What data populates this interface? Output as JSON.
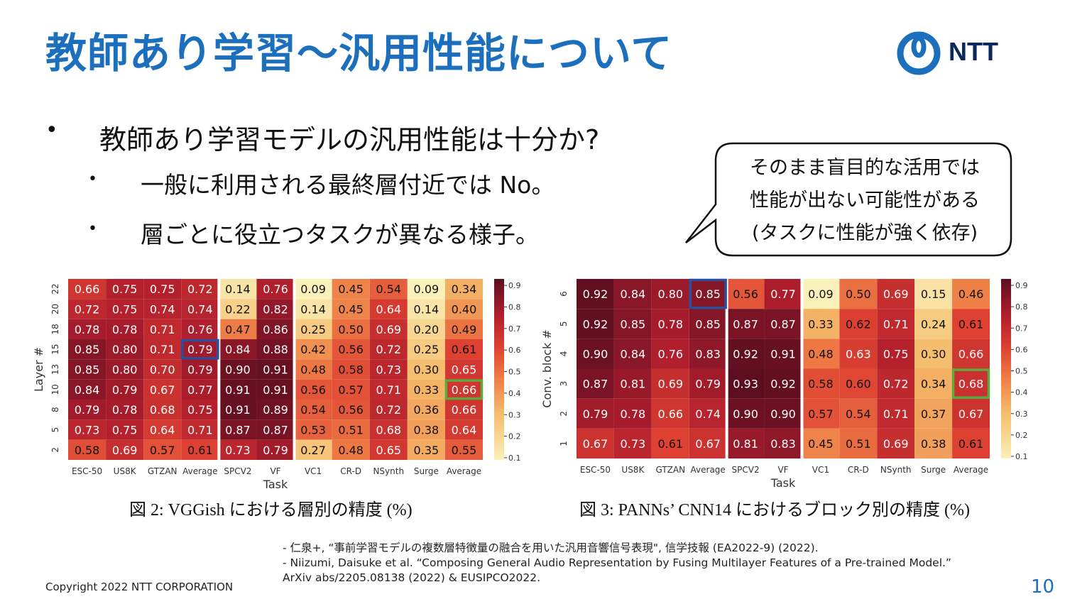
{
  "slide": {
    "title": "教師あり学習～汎用性能について",
    "logo_text": "NTT",
    "bullet1": "教師あり学習モデルの汎用性能は十分か?",
    "sub1": "一般に利用される最終層付近では No。",
    "sub2": "層ごとに役立つタスクが異なる様子。",
    "bullet_glyph": "•",
    "callout": [
      "そのまま盲目的な活用では",
      "性能が出ない可能性がある",
      "(タスクに性能が強く依存)"
    ],
    "references": [
      "- 仁泉+, “事前学習モデルの複数層特徴量の融合を用いた汎用音響信号表現\", 信学技報 (EA2022-9) (2022).",
      "- Niizumi, Daisuke et al. “Composing General Audio Representation by Fusing Multilayer Features of a Pre-trained Model.”",
      "ArXiv abs/2205.08138 (2022) & EUSIPCO2022."
    ],
    "copyright": "Copyright 2022 NTT CORPORATION",
    "page_number": "10",
    "colors": {
      "title": "#1b6fbd",
      "highlight_blue": "#2b4f9e",
      "highlight_green": "#5aaa3c"
    }
  },
  "chart_data": [
    {
      "type": "heatmap",
      "caption": "図 2: VGGish における層別の精度 (%)",
      "xlabel": "Task",
      "ylabel": "Layer #",
      "x": [
        "ESC-50",
        "US8K",
        "GTZAN",
        "Average",
        "SPCV2",
        "VF",
        "VC1",
        "CR-D",
        "NSynth",
        "Surge",
        "Average"
      ],
      "y": [
        "22",
        "20",
        "18",
        "15",
        "13",
        "10",
        "8",
        "5",
        "2"
      ],
      "values": [
        [
          0.66,
          0.75,
          0.75,
          0.72,
          0.14,
          0.76,
          0.09,
          0.45,
          0.54,
          0.09,
          0.34
        ],
        [
          0.72,
          0.75,
          0.74,
          0.74,
          0.22,
          0.82,
          0.14,
          0.45,
          0.64,
          0.14,
          0.4
        ],
        [
          0.78,
          0.78,
          0.71,
          0.76,
          0.47,
          0.86,
          0.25,
          0.5,
          0.69,
          0.2,
          0.49
        ],
        [
          0.85,
          0.8,
          0.71,
          0.79,
          0.84,
          0.88,
          0.42,
          0.56,
          0.72,
          0.25,
          0.61
        ],
        [
          0.85,
          0.8,
          0.7,
          0.79,
          0.9,
          0.91,
          0.48,
          0.58,
          0.73,
          0.3,
          0.65
        ],
        [
          0.84,
          0.79,
          0.67,
          0.77,
          0.91,
          0.91,
          0.56,
          0.57,
          0.71,
          0.33,
          0.66
        ],
        [
          0.79,
          0.78,
          0.68,
          0.75,
          0.91,
          0.89,
          0.54,
          0.56,
          0.72,
          0.36,
          0.66
        ],
        [
          0.73,
          0.75,
          0.64,
          0.71,
          0.87,
          0.87,
          0.53,
          0.51,
          0.68,
          0.38,
          0.64
        ],
        [
          0.58,
          0.69,
          0.57,
          0.61,
          0.73,
          0.79,
          0.27,
          0.48,
          0.65,
          0.35,
          0.55
        ]
      ],
      "colorbar_ticks": [
        "0.9",
        "0.8",
        "0.7",
        "0.6",
        "0.5",
        "0.4",
        "0.3",
        "0.2",
        "0.1"
      ],
      "colorbar_range": [
        0.09,
        0.93
      ],
      "highlights": [
        {
          "row": 3,
          "col": 3,
          "color": "blue"
        },
        {
          "row": 5,
          "col": 10,
          "color": "green"
        }
      ]
    },
    {
      "type": "heatmap",
      "caption": "図 3: PANNs’ CNN14 におけるブロック別の精度 (%)",
      "xlabel": "Task",
      "ylabel": "Conv. block #",
      "x": [
        "ESC-50",
        "US8K",
        "GTZAN",
        "Average",
        "SPCV2",
        "VF",
        "VC1",
        "CR-D",
        "NSynth",
        "Surge",
        "Average"
      ],
      "y": [
        "6",
        "5",
        "4",
        "3",
        "2",
        "1"
      ],
      "values": [
        [
          0.92,
          0.84,
          0.8,
          0.85,
          0.56,
          0.77,
          0.09,
          0.5,
          0.69,
          0.15,
          0.46
        ],
        [
          0.92,
          0.85,
          0.78,
          0.85,
          0.87,
          0.87,
          0.33,
          0.62,
          0.71,
          0.24,
          0.61
        ],
        [
          0.9,
          0.84,
          0.76,
          0.83,
          0.92,
          0.91,
          0.48,
          0.63,
          0.75,
          0.3,
          0.66
        ],
        [
          0.87,
          0.81,
          0.69,
          0.79,
          0.93,
          0.92,
          0.58,
          0.6,
          0.72,
          0.34,
          0.68
        ],
        [
          0.79,
          0.78,
          0.66,
          0.74,
          0.9,
          0.9,
          0.57,
          0.54,
          0.71,
          0.37,
          0.67
        ],
        [
          0.67,
          0.73,
          0.61,
          0.67,
          0.81,
          0.83,
          0.45,
          0.51,
          0.69,
          0.38,
          0.61
        ]
      ],
      "colorbar_ticks": [
        "0.9",
        "0.8",
        "0.7",
        "0.6",
        "0.5",
        "0.4",
        "0.3",
        "0.2",
        "0.1"
      ],
      "colorbar_range": [
        0.09,
        0.93
      ],
      "highlights": [
        {
          "row": 0,
          "col": 3,
          "color": "blue"
        },
        {
          "row": 3,
          "col": 10,
          "color": "green"
        }
      ]
    }
  ]
}
